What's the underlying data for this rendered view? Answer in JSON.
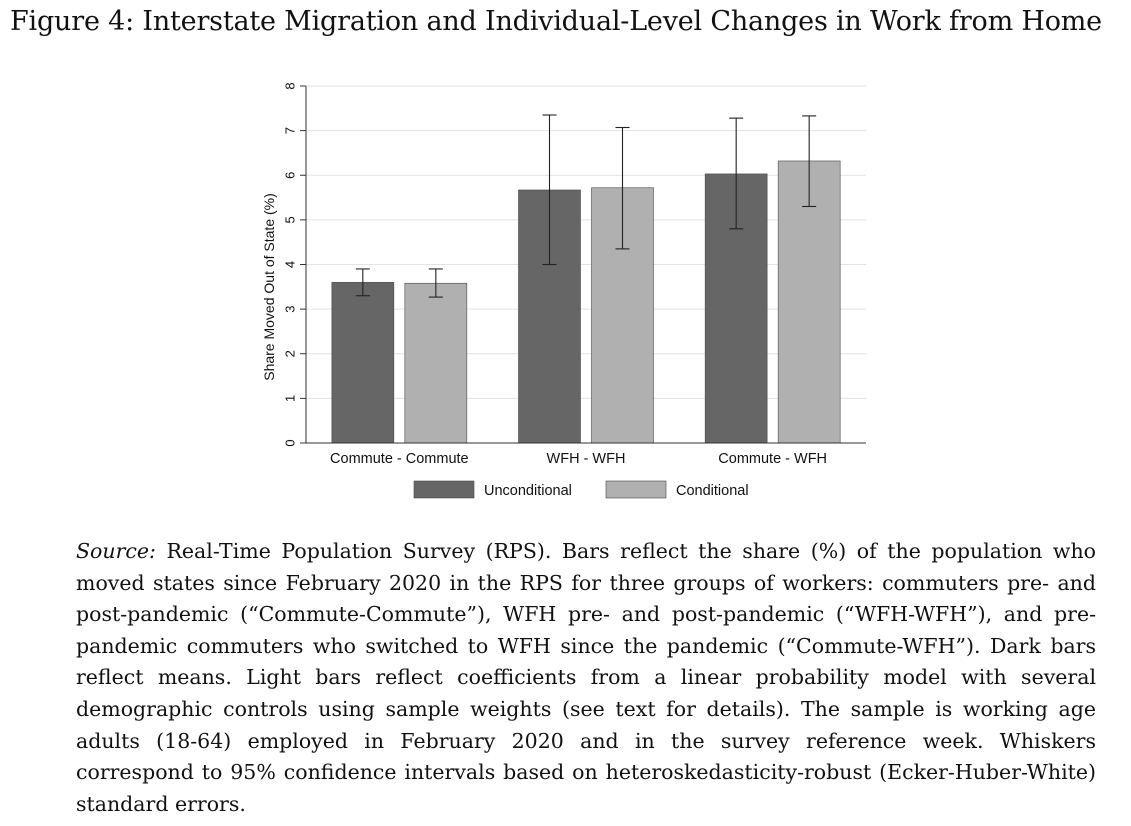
{
  "figure": {
    "title": "Figure 4: Interstate Migration and Individual-Level Changes in Work from Home"
  },
  "chart_data": {
    "type": "bar",
    "title": "",
    "xlabel": "",
    "ylabel": "Share Moved Out of State (%)",
    "ylim": [
      0,
      8
    ],
    "yticks": [
      0,
      1,
      2,
      3,
      4,
      5,
      6,
      7,
      8
    ],
    "grid": true,
    "legend_position": "bottom",
    "categories": [
      "Commute - Commute",
      "WFH - WFH",
      "Commute - WFH"
    ],
    "series": [
      {
        "name": "Unconditional",
        "color": "#666666",
        "values": [
          3.6,
          5.67,
          6.03
        ],
        "ci_low": [
          3.3,
          4.0,
          4.8
        ],
        "ci_high": [
          3.9,
          7.35,
          7.28
        ]
      },
      {
        "name": "Conditional",
        "color": "#b0b0b0",
        "values": [
          3.58,
          5.72,
          6.32
        ],
        "ci_low": [
          3.27,
          4.35,
          5.3
        ],
        "ci_high": [
          3.9,
          7.07,
          7.33
        ]
      }
    ]
  },
  "caption": {
    "source_label": "Source:",
    "text": " Real-Time Population Survey (RPS). Bars reflect the share (%) of the population who moved states since February 2020 in the RPS for three groups of workers: commuters pre- and post-pandemic (“Commute-Commute”), WFH pre- and post-pandemic (“WFH-WFH”), and pre-pandemic commuters who switched to WFH since the pandemic (“Commute-WFH”). Dark bars reflect means. Light bars reflect coefficients from a linear probability model with several demographic controls using sample weights (see text for details). The sample is working age adults (18-64) employed in February 2020 and in the survey reference week. Whiskers correspond to 95% confidence intervals based on heteroskedasticity-robust (Ecker-Huber-White) standard errors."
  }
}
